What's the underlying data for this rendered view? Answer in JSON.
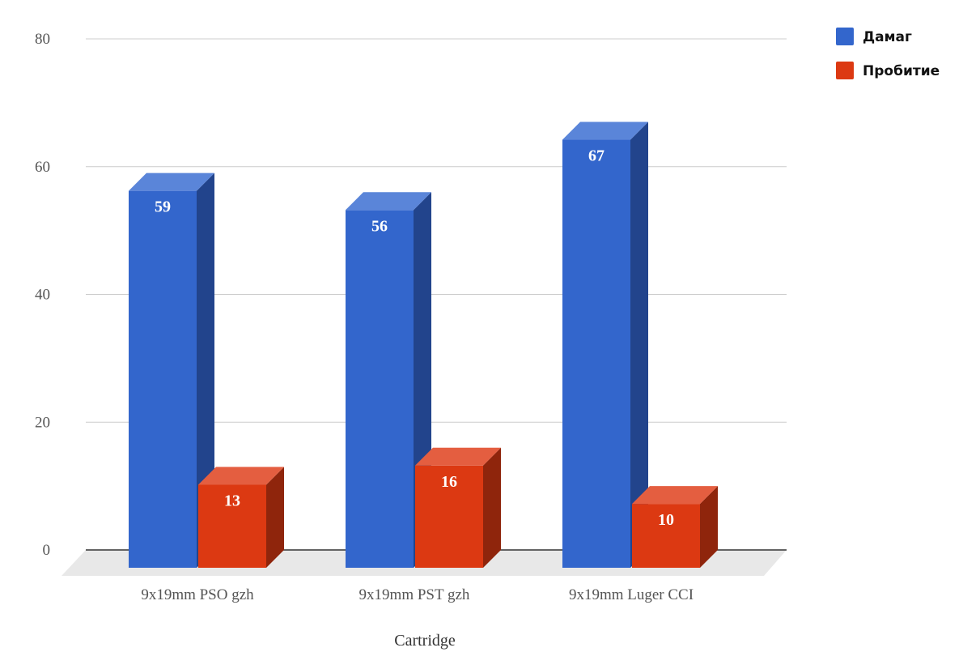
{
  "chart_data": {
    "type": "bar",
    "style": "3d-clustered-column",
    "categories": [
      "9x19mm PSO gzh",
      "9x19mm PST gzh",
      "9x19mm Luger CCI"
    ],
    "series": [
      {
        "name": "Дамаг",
        "values": [
          59,
          56,
          67
        ],
        "color": "#3366cc",
        "side_color": "#22448c",
        "top_color": "#5a85d9"
      },
      {
        "name": "Пробитие",
        "values": [
          13,
          16,
          10
        ],
        "color": "#dc3912",
        "side_color": "#8f250c",
        "top_color": "#e45e40"
      }
    ],
    "xlabel": "Cartridge",
    "ylabel": "",
    "ylim": [
      0,
      80
    ],
    "yticks": [
      0,
      20,
      40,
      60,
      80
    ],
    "grid": true,
    "legend_position": "top-right",
    "data_labels": true
  }
}
